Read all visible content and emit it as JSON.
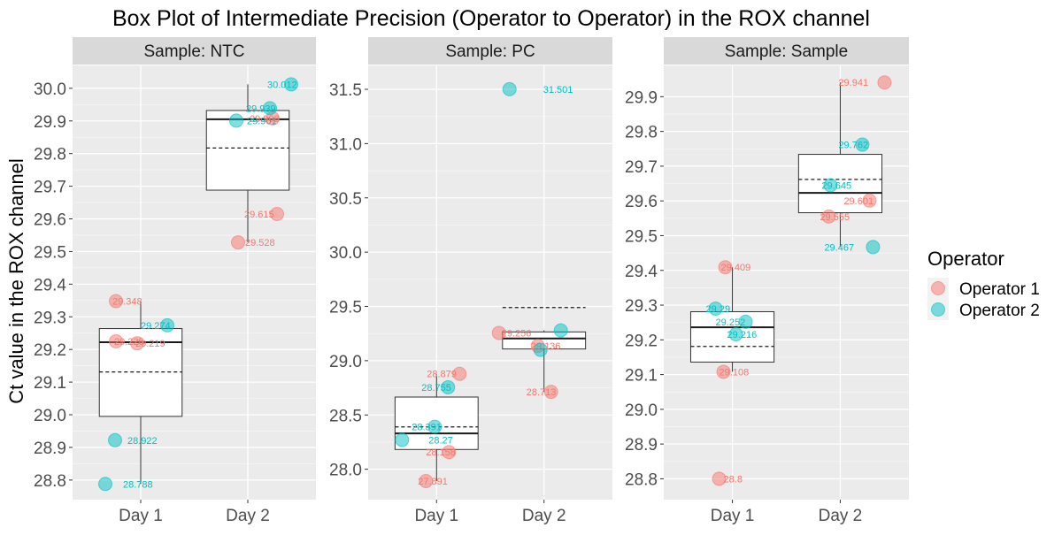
{
  "chart_data": {
    "type": "box",
    "title": "Box Plot of Intermediate Precision (Operator to Operator) in the ROX channel",
    "ylabel": "Ct value in the ROX channel",
    "xlabel": "",
    "categories": [
      "Day 1",
      "Day 2"
    ],
    "legend": {
      "title": "Operator",
      "position": "right",
      "entries": [
        {
          "name": "Operator 1",
          "color": "#F8766D"
        },
        {
          "name": "Operator 2",
          "color": "#00BFC4"
        }
      ]
    },
    "grid": true,
    "panels": [
      {
        "strip": "Sample: NTC",
        "ylim": [
          28.74,
          30.07
        ],
        "yticks": [
          "28.8",
          "28.9",
          "29.0",
          "29.1",
          "29.2",
          "29.3",
          "29.4",
          "29.5",
          "29.6",
          "29.7",
          "29.8",
          "29.9",
          "30.0"
        ],
        "boxes": [
          {
            "category": "Day 1",
            "min": 28.788,
            "q1": 28.995,
            "median": 29.222,
            "q3": 29.264,
            "max": 29.348,
            "mean": 29.131
          },
          {
            "category": "Day 2",
            "min": 29.528,
            "q1": 29.688,
            "median": 29.905,
            "q3": 29.932,
            "max": 30.012,
            "mean": 29.817
          }
        ],
        "points": [
          {
            "category": "Day 1",
            "series": "Operator 1",
            "value": 29.348,
            "label": "29.348"
          },
          {
            "category": "Day 1",
            "series": "Operator 1",
            "value": 29.225,
            "label": "29.225"
          },
          {
            "category": "Day 1",
            "series": "Operator 1",
            "value": 29.219,
            "label": "29.219"
          },
          {
            "category": "Day 1",
            "series": "Operator 2",
            "value": 29.274,
            "label": "29.274"
          },
          {
            "category": "Day 1",
            "series": "Operator 2",
            "value": 28.922,
            "label": "28.922"
          },
          {
            "category": "Day 1",
            "series": "Operator 2",
            "value": 28.788,
            "label": "28.788"
          },
          {
            "category": "Day 2",
            "series": "Operator 1",
            "value": 29.908,
            "label": "29.908"
          },
          {
            "category": "Day 2",
            "series": "Operator 1",
            "value": 29.615,
            "label": "29.615"
          },
          {
            "category": "Day 2",
            "series": "Operator 1",
            "value": 29.528,
            "label": "29.528"
          },
          {
            "category": "Day 2",
            "series": "Operator 2",
            "value": 30.012,
            "label": "30.012"
          },
          {
            "category": "Day 2",
            "series": "Operator 2",
            "value": 29.939,
            "label": "29.939"
          },
          {
            "category": "Day 2",
            "series": "Operator 2",
            "value": 29.901,
            "label": "29.901"
          }
        ]
      },
      {
        "strip": "Sample: PC",
        "ylim": [
          27.72,
          31.72
        ],
        "yticks": [
          "28.0",
          "28.5",
          "29.0",
          "29.5",
          "30.0",
          "30.5",
          "31.0",
          "31.5"
        ],
        "boxes": [
          {
            "category": "Day 1",
            "min": 27.891,
            "q1": 28.182,
            "median": 28.33,
            "q3": 28.665,
            "max": 28.879,
            "mean": 28.39
          },
          {
            "category": "Day 2",
            "min": 28.713,
            "q1": 29.108,
            "median": 29.205,
            "q3": 29.265,
            "max": 29.279,
            "mean": 29.49
          }
        ],
        "points": [
          {
            "category": "Day 1",
            "series": "Operator 1",
            "value": 28.879,
            "label": "28.879"
          },
          {
            "category": "Day 1",
            "series": "Operator 1",
            "value": 28.158,
            "label": "28.158"
          },
          {
            "category": "Day 1",
            "series": "Operator 1",
            "value": 27.891,
            "label": "27.891"
          },
          {
            "category": "Day 1",
            "series": "Operator 2",
            "value": 28.755,
            "label": "28.755"
          },
          {
            "category": "Day 1",
            "series": "Operator 2",
            "value": 28.391,
            "label": "28.391"
          },
          {
            "category": "Day 1",
            "series": "Operator 2",
            "value": 28.27,
            "label": "28.27"
          },
          {
            "category": "Day 2",
            "series": "Operator 1",
            "value": 29.256,
            "label": "29.256"
          },
          {
            "category": "Day 2",
            "series": "Operator 1",
            "value": 29.136,
            "label": "29.136"
          },
          {
            "category": "Day 2",
            "series": "Operator 1",
            "value": 28.713,
            "label": "28.713"
          },
          {
            "category": "Day 2",
            "series": "Operator 2",
            "value": 31.501,
            "label": "31.501"
          },
          {
            "category": "Day 2",
            "series": "Operator 2",
            "value": 29.279,
            "label": ""
          },
          {
            "category": "Day 2",
            "series": "Operator 2",
            "value": 29.1,
            "label": ""
          }
        ]
      },
      {
        "strip": "Sample: Sample",
        "ylim": [
          28.74,
          29.99
        ],
        "yticks": [
          "28.8",
          "28.9",
          "29.0",
          "29.1",
          "29.2",
          "29.3",
          "29.4",
          "29.5",
          "29.6",
          "29.7",
          "29.8",
          "29.9"
        ],
        "boxes": [
          {
            "category": "Day 1",
            "min": 29.108,
            "q1": 29.136,
            "median": 29.236,
            "q3": 29.281,
            "max": 29.409,
            "mean": 29.181
          },
          {
            "category": "Day 2",
            "min": 29.467,
            "q1": 29.566,
            "median": 29.623,
            "q3": 29.734,
            "max": 29.941,
            "mean": 29.662
          }
        ],
        "points": [
          {
            "category": "Day 1",
            "series": "Operator 1",
            "value": 29.409,
            "label": "29.409"
          },
          {
            "category": "Day 1",
            "series": "Operator 1",
            "value": 29.108,
            "label": "29.108"
          },
          {
            "category": "Day 1",
            "series": "Operator 1",
            "value": 28.8,
            "label": "28.8"
          },
          {
            "category": "Day 1",
            "series": "Operator 2",
            "value": 29.29,
            "label": "29.29"
          },
          {
            "category": "Day 1",
            "series": "Operator 2",
            "value": 29.252,
            "label": "29.252"
          },
          {
            "category": "Day 1",
            "series": "Operator 2",
            "value": 29.216,
            "label": "29.216"
          },
          {
            "category": "Day 2",
            "series": "Operator 1",
            "value": 29.941,
            "label": "29.941"
          },
          {
            "category": "Day 2",
            "series": "Operator 1",
            "value": 29.601,
            "label": "29.601"
          },
          {
            "category": "Day 2",
            "series": "Operator 1",
            "value": 29.555,
            "label": "29.555"
          },
          {
            "category": "Day 2",
            "series": "Operator 2",
            "value": 29.762,
            "label": "29.762"
          },
          {
            "category": "Day 2",
            "series": "Operator 2",
            "value": 29.645,
            "label": "29.645"
          },
          {
            "category": "Day 2",
            "series": "Operator 2",
            "value": 29.467,
            "label": "29.467"
          }
        ]
      }
    ]
  }
}
